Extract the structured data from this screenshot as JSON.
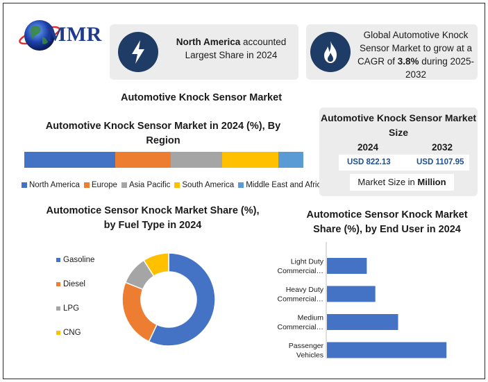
{
  "logo": {
    "text": "MMR"
  },
  "info": {
    "region_bold": "North America",
    "region_rest": " accounted Largest Share in 2024",
    "growth_pre": "Global Automotive Knock Sensor Market to grow at a CAGR of ",
    "growth_cagr": "3.8%",
    "growth_post": " during 2025-2032",
    "lightning_icon": "lightning-icon",
    "flame_icon": "flame-icon"
  },
  "main_title": "Automotive Knock Sensor Market",
  "market_size": {
    "title": "Automotive Knock Sensor Market Size",
    "year1": "2024",
    "year2": "2032",
    "value1": "USD 822.13",
    "value2": "USD 1107.95",
    "unit_pre": "Market Size in ",
    "unit_bold": "Million"
  },
  "colors": {
    "blue": "#4472c4",
    "orange": "#ed7d31",
    "gray": "#a5a5a5",
    "yellow": "#ffc000",
    "light_blue": "#5b9bd5",
    "navy": "#1f3c66"
  },
  "chart_data": [
    {
      "type": "bar",
      "orientation": "horizontal-stacked",
      "title": "Automotive Knock Sensor Market in 2024 (%), By Region",
      "categories": [
        "North America",
        "Europe",
        "Asia Pacific",
        "South America",
        "Middle East and Africa"
      ],
      "values": [
        32.5,
        20,
        18.5,
        20,
        9
      ],
      "colors": [
        "#4472c4",
        "#ed7d31",
        "#a5a5a5",
        "#ffc000",
        "#5b9bd5"
      ],
      "legend": "bottom"
    },
    {
      "type": "pie",
      "style": "donut",
      "title": "Automotice Sensor Knock Market Share (%), by  Fuel Type in 2024",
      "categories": [
        "Gasoline",
        "Diesel",
        "LPG",
        "CNG"
      ],
      "values": [
        57,
        24,
        10,
        9
      ],
      "colors": [
        "#4472c4",
        "#ed7d31",
        "#a5a5a5",
        "#ffc000"
      ],
      "legend": "left"
    },
    {
      "type": "bar",
      "orientation": "horizontal",
      "title": "Automotice Sensor Knock Market Share (%), by  End User in 2024",
      "categories": [
        "Light Duty Commercial…",
        "Heavy Duty Commercial…",
        "Medium Commercial…",
        "Passenger Vehicles"
      ],
      "category_lines": [
        [
          "Light Duty",
          "Commercial…"
        ],
        [
          "Heavy Duty",
          "Commercial…"
        ],
        [
          "Medium",
          "Commercial…"
        ],
        [
          "Passenger",
          "Vehicles"
        ]
      ],
      "values": [
        14,
        17,
        25,
        42
      ],
      "colors": [
        "#4472c4"
      ],
      "xlim": [
        0,
        50
      ],
      "grid": false
    }
  ]
}
